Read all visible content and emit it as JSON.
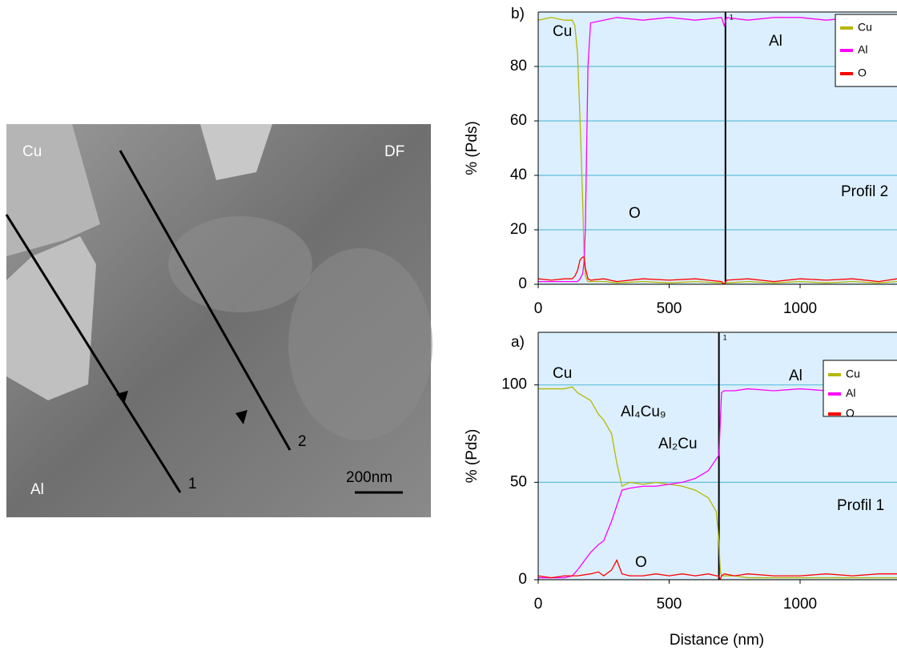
{
  "image": {
    "labels": [
      "Cu",
      "DF",
      "Al",
      "1",
      "2",
      "200nm"
    ]
  },
  "chart_data": [
    {
      "type": "line",
      "panel": "b)",
      "ylabel": "% (Pds)",
      "xlim": [
        0,
        1370
      ],
      "xticks": [
        0,
        500,
        1000
      ],
      "ylim": [
        0,
        100
      ],
      "yticks": [
        0,
        20,
        40,
        60,
        80
      ],
      "grid": true,
      "x": [
        0,
        50,
        100,
        130,
        140,
        150,
        160,
        170,
        175,
        180,
        190,
        200,
        250,
        300,
        400,
        500,
        600,
        700,
        710,
        720,
        800,
        900,
        1000,
        1100,
        1200,
        1300,
        1370
      ],
      "series": [
        {
          "name": "Cu",
          "color": "#b5b800",
          "values": [
            97,
            98,
            97,
            97,
            95,
            85,
            60,
            30,
            12,
            3,
            1,
            1,
            1,
            0.5,
            1,
            0.5,
            1,
            0.5,
            0,
            0.5,
            1,
            0.5,
            1,
            0.5,
            1,
            0.5,
            1
          ]
        },
        {
          "name": "Al",
          "color": "#ff00ff",
          "values": [
            1,
            1,
            1,
            1,
            1,
            1,
            2,
            4,
            8,
            20,
            80,
            96,
            97,
            98,
            97,
            98,
            97,
            98,
            95,
            98,
            97,
            98,
            98,
            97,
            98,
            97,
            98
          ]
        },
        {
          "name": "O",
          "color": "#ff0000",
          "values": [
            2,
            1.5,
            2,
            2,
            3,
            5,
            9,
            10,
            10,
            6,
            2,
            1.5,
            2,
            1,
            2,
            1.5,
            2,
            1,
            0,
            1.5,
            2,
            1,
            2,
            1.5,
            2,
            1,
            2
          ]
        }
      ],
      "markers": [
        {
          "x": 715,
          "label": "1"
        }
      ],
      "annotations": [
        "Cu",
        "Al",
        "O",
        "Profil 2"
      ]
    },
    {
      "type": "line",
      "panel": "a)",
      "ylabel": "% (Pds)",
      "xlabel": "Distance (nm)",
      "xlim": [
        0,
        1370
      ],
      "xticks": [
        0,
        500,
        1000
      ],
      "ylim": [
        0,
        127
      ],
      "yticks": [
        0,
        50,
        100
      ],
      "grid": true,
      "x": [
        0,
        50,
        100,
        130,
        150,
        200,
        230,
        250,
        280,
        300,
        320,
        350,
        400,
        450,
        500,
        550,
        600,
        650,
        680,
        690,
        695,
        700,
        710,
        750,
        800,
        900,
        1000,
        1100,
        1200,
        1300,
        1370
      ],
      "series": [
        {
          "name": "Cu",
          "color": "#b5b800",
          "values": [
            98,
            98,
            98,
            99,
            96,
            92,
            85,
            82,
            75,
            60,
            48,
            50,
            49,
            50,
            49,
            48,
            46,
            42,
            35,
            20,
            5,
            2,
            2,
            2,
            1,
            1,
            1,
            1,
            1,
            1,
            1
          ]
        },
        {
          "name": "Al",
          "color": "#ff00ff",
          "values": [
            1,
            1,
            1,
            2,
            5,
            14,
            18,
            20,
            30,
            38,
            46,
            47,
            48,
            48,
            49,
            50,
            52,
            56,
            62,
            64,
            80,
            96,
            97,
            97,
            98,
            97,
            98,
            97,
            96,
            97,
            97
          ]
        },
        {
          "name": "O",
          "color": "#ff0000",
          "values": [
            2,
            1,
            2,
            2,
            2,
            3,
            4,
            2,
            5,
            10,
            3,
            2,
            2,
            3,
            2,
            3,
            2,
            3,
            2,
            2,
            0,
            2,
            3,
            2,
            3,
            2,
            2,
            3,
            2,
            3,
            3
          ]
        }
      ],
      "markers": [
        {
          "x": 690,
          "label": "1"
        }
      ],
      "annotations": [
        "Cu",
        "Al",
        "Al₄Cu₉",
        "Al₂Cu",
        "O",
        "Profil 1"
      ]
    }
  ]
}
